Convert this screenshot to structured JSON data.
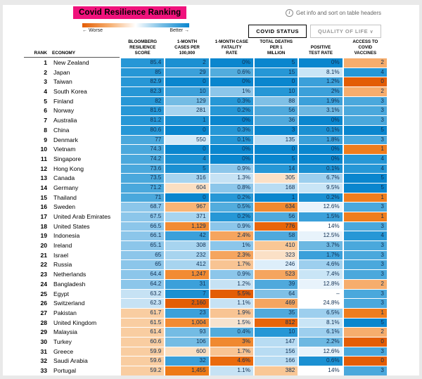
{
  "page": {
    "title": "Covid Resilience Ranking",
    "legend": {
      "worse_label": "← Worse",
      "better_label": "Better →"
    },
    "info_icon_glyph": "i",
    "info_text": "Get info and sort on table headers",
    "tabs": [
      {
        "label": "COVID STATUS",
        "active": true
      },
      {
        "label": "QUALITY OF LIFE",
        "chevron": "∨",
        "active": false
      }
    ]
  },
  "colors": {
    "accent_pink": "#f0127c",
    "best_blue": "#0a86ce",
    "worst_orange": "#e35d05"
  },
  "table": {
    "rank_header": "RANK",
    "economy_header": "ECONOMY",
    "column_headers": [
      "BLOOMBERG\nRESILIENCE\nSCORE",
      "1-MONTH\nCASES PER\n100,000",
      "1-MONTH CASE\nFATALITY\nRATE",
      "TOTAL DEATHS\nPER 1\nMILLION",
      "POSITIVE\nTEST RATE",
      "ACCESS TO\nCOVID\nVACCINES"
    ]
  },
  "chart_data": {
    "type": "table",
    "title": "Covid Resilience Ranking",
    "colorscale": "orange = worse, blue = better",
    "columns": [
      "Rank",
      "Economy",
      "Bloomberg Resilience Score",
      "1-Month Cases Per 100,000",
      "1-Month Case Fatality Rate",
      "Total Deaths Per 1 Million",
      "Positive Test Rate",
      "Access To Covid Vaccines"
    ],
    "rows": [
      [
        1,
        "New Zealand",
        "85.4",
        "2",
        "0%",
        "5",
        "0%",
        "2"
      ],
      [
        2,
        "Japan",
        "85",
        "29",
        "0.6%",
        "15",
        "8.1%",
        "4"
      ],
      [
        3,
        "Taiwan",
        "82.9",
        "0",
        "0%",
        "0",
        "1.2%",
        "0"
      ],
      [
        4,
        "South Korea",
        "82.3",
        "10",
        "1%",
        "10",
        "2%",
        "2"
      ],
      [
        5,
        "Finland",
        "82",
        "129",
        "0.3%",
        "88",
        "1.9%",
        "3"
      ],
      [
        6,
        "Norway",
        "81.6",
        "281",
        "0.2%",
        "56",
        "3.1%",
        "3"
      ],
      [
        7,
        "Australia",
        "81.2",
        "1",
        "0%",
        "36",
        "0%",
        "3"
      ],
      [
        8,
        "China",
        "80.6",
        "0",
        "0.3%",
        "3",
        "0.1%",
        "5"
      ],
      [
        9,
        "Denmark",
        "77",
        "550",
        "0.1%",
        "135",
        "1.8%",
        "3"
      ],
      [
        10,
        "Vietnam",
        "74.3",
        "0",
        "0%",
        "0",
        "0%",
        "1"
      ],
      [
        11,
        "Singapore",
        "74.2",
        "4",
        "0%",
        "5",
        "0%",
        "4"
      ],
      [
        12,
        "Hong Kong",
        "73.6",
        "5",
        "0.9%",
        "14",
        "0.1%",
        "4"
      ],
      [
        13,
        "Canada",
        "73.5",
        "316",
        "1.3%",
        "305",
        "6.7%",
        "5"
      ],
      [
        14,
        "Germany",
        "71.2",
        "604",
        "0.8%",
        "168",
        "9.5%",
        "5"
      ],
      [
        15,
        "Thailand",
        "71",
        "0",
        "0.2%",
        "1",
        "0.2%",
        "1"
      ],
      [
        16,
        "Sweden",
        "68.7",
        "967",
        "0.5%",
        "634",
        "12.6%",
        "3"
      ],
      [
        17,
        "United Arab Emirates",
        "67.5",
        "371",
        "0.2%",
        "56",
        "1.5%",
        "1"
      ],
      [
        18,
        "United States",
        "66.5",
        "1,129",
        "0.9%",
        "776",
        "14%",
        "3"
      ],
      [
        19,
        "Indonesia",
        "66.1",
        "42",
        "2.4%",
        "58",
        "12.5%",
        "4"
      ],
      [
        20,
        "Ireland",
        "65.1",
        "308",
        "1%",
        "410",
        "3.7%",
        "3"
      ],
      [
        21,
        "Israel",
        "65",
        "232",
        "2.3%",
        "323",
        "1.7%",
        "3"
      ],
      [
        22,
        "Russia",
        "65",
        "412",
        "1.7%",
        "246",
        "4.6%",
        "3"
      ],
      [
        23,
        "Netherlands",
        "64.4",
        "1,247",
        "0.9%",
        "523",
        "7.4%",
        "3"
      ],
      [
        24,
        "Bangladesh",
        "64.2",
        "31",
        "1.2%",
        "39",
        "12.8%",
        "2"
      ],
      [
        25,
        "Egypt",
        "63.2",
        "7",
        "5.5%",
        "64",
        "–",
        "3"
      ],
      [
        26,
        "Switzerland",
        "62.3",
        "2,160",
        "1.1%",
        "469",
        "24.8%",
        "3"
      ],
      [
        27,
        "Pakistan",
        "61.7",
        "23",
        "1.9%",
        "35",
        "6.5%",
        "1"
      ],
      [
        28,
        "United Kingdom",
        "61.5",
        "1,004",
        "1.5%",
        "812",
        "8.1%",
        "5"
      ],
      [
        29,
        "Malaysia",
        "61.4",
        "93",
        "0.4%",
        "10",
        "6.1%",
        "2"
      ],
      [
        30,
        "Turkey",
        "60.6",
        "106",
        "3%",
        "147",
        "2.2%",
        "0"
      ],
      [
        31,
        "Greece",
        "59.9",
        "600",
        "1.7%",
        "156",
        "12.6%",
        "3"
      ],
      [
        32,
        "Saudi Arabia",
        "59.6",
        "32",
        "4.6%",
        "166",
        "0.6%",
        "0"
      ],
      [
        33,
        "Portugal",
        "59.2",
        "1,455",
        "1.1%",
        "382",
        "14%",
        "3"
      ]
    ]
  }
}
